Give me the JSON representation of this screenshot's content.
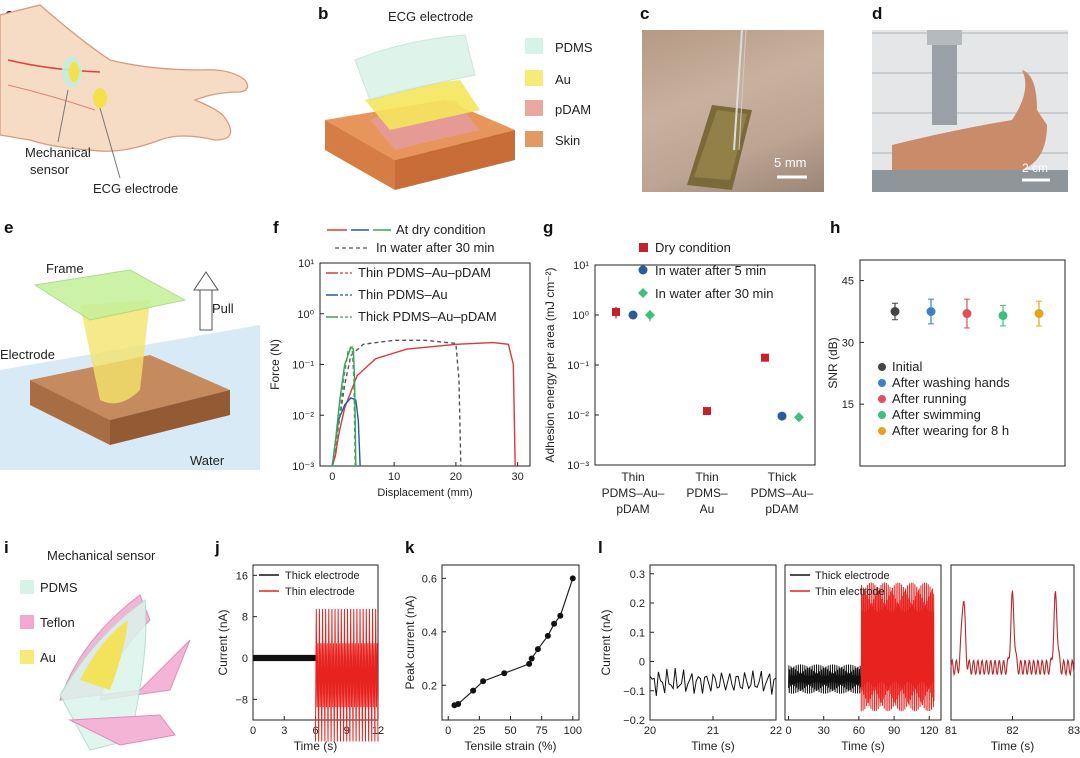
{
  "panels": {
    "a": {
      "label": "a",
      "mech": "Mechanical\nsensor",
      "ecg": "ECG electrode"
    },
    "b": {
      "label": "b",
      "title": "ECG electrode",
      "layers": [
        {
          "name": "PDMS",
          "color": "#d7f3e8"
        },
        {
          "name": "Au",
          "color": "#f6ea7a"
        },
        {
          "name": "pDAM",
          "color": "#e9a7a0"
        },
        {
          "name": "Skin",
          "color": "#e09a62"
        }
      ]
    },
    "c": {
      "label": "c",
      "scale": "5 mm"
    },
    "d": {
      "label": "d",
      "scale": "2 cm"
    },
    "e": {
      "label": "e",
      "frame": "Frame",
      "pull": "Pull",
      "electrode": "Electrode",
      "water": "Water"
    },
    "f": {
      "label": "f",
      "legend_top": [
        "At dry condition",
        "In water after 30 min"
      ]
    },
    "g": {
      "label": "g"
    },
    "h": {
      "label": "h"
    },
    "i": {
      "label": "i",
      "title": "Mechanical sensor",
      "layers": [
        {
          "name": "PDMS",
          "color": "#d7f3e8"
        },
        {
          "name": "Teflon",
          "color": "#f3a9cf"
        },
        {
          "name": "Au",
          "color": "#f6ea7a"
        }
      ]
    },
    "j": {
      "label": "j"
    },
    "k": {
      "label": "k"
    },
    "l": {
      "label": "l"
    }
  },
  "chart_data": [
    {
      "id": "f",
      "type": "line",
      "xlabel": "Displacement (mm)",
      "ylabel": "Force (N)",
      "yscale": "log",
      "xlim": [
        -2,
        32
      ],
      "ylim": [
        0.001,
        10
      ],
      "xticks": [
        "0",
        "10",
        "20",
        "30"
      ],
      "yticks": [
        "10⁻³",
        "10⁻²",
        "10⁻¹",
        "10⁰",
        "10¹"
      ],
      "series": [
        {
          "name": "Thin PDMS–Au–pDAM",
          "color": "#d63b3b",
          "dash": false,
          "x": [
            0,
            0.5,
            1,
            2,
            4,
            7,
            12,
            20,
            26,
            28.5,
            29.3,
            29.6
          ],
          "y": [
            0.001,
            0.0016,
            0.004,
            0.014,
            0.06,
            0.13,
            0.2,
            0.25,
            0.27,
            0.25,
            0.1,
            0.001
          ]
        },
        {
          "name": "Thin PDMS–Au–pDAM water",
          "color": "#555",
          "dash": true,
          "x": [
            0,
            1,
            2,
            3,
            5,
            10,
            15,
            20,
            20.5,
            20.8
          ],
          "y": [
            0.001,
            0.006,
            0.04,
            0.15,
            0.25,
            0.3,
            0.3,
            0.26,
            0.05,
            0.001
          ]
        },
        {
          "name": "Thin PDMS–Au",
          "color": "#1f5aa8",
          "dash": false,
          "x": [
            0,
            0.5,
            1,
            2,
            3,
            3.8,
            4.2,
            4.5
          ],
          "y": [
            0.001,
            0.003,
            0.008,
            0.016,
            0.022,
            0.02,
            0.008,
            0.001
          ]
        },
        {
          "name": "Thick PDMS–Au–pDAM",
          "color": "#3fa05a",
          "dash": false,
          "x": [
            0,
            0.6,
            1.2,
            2,
            3,
            3.4,
            3.6,
            3.8
          ],
          "y": [
            0.001,
            0.004,
            0.02,
            0.1,
            0.22,
            0.2,
            0.05,
            0.001
          ]
        },
        {
          "name": "Thick PDMS–Au–pDAM water",
          "color": "#3fa05a",
          "dash": true,
          "x": [
            0,
            1,
            1.8,
            2.6,
            3.2,
            3.5,
            3.7
          ],
          "y": [
            0.001,
            0.006,
            0.05,
            0.2,
            0.22,
            0.05,
            0.001
          ]
        }
      ],
      "legend": [
        "Thin PDMS–Au–pDAM",
        "Thin PDMS–Au",
        "Thick PDMS–Au–pDAM"
      ]
    },
    {
      "id": "g",
      "type": "scatter",
      "ylabel": "Adhesion energy per area (mJ cm⁻²)",
      "yscale": "log",
      "ylim": [
        0.001,
        10
      ],
      "yticks": [
        "10⁻³",
        "10⁻²",
        "10⁻¹",
        "10⁰",
        "10¹"
      ],
      "categories": [
        "Thin\nPDMS–Au–\npDAM",
        "Thin\nPDMS–\nAu",
        "Thick\nPDMS–Au–\npDAM"
      ],
      "series": [
        {
          "name": "Dry condition",
          "color": "#c8202a",
          "marker": "square",
          "values": [
            1.15,
            0.012,
            0.14
          ],
          "err": [
            0.3,
            0.001,
            0.02
          ]
        },
        {
          "name": "In water after 5 min",
          "color": "#2a5c9a",
          "marker": "circle",
          "values": [
            1.0,
            null,
            0.0095
          ],
          "err": [
            0,
            0,
            0.0015
          ]
        },
        {
          "name": "In water after 30 min",
          "color": "#3dbf7d",
          "marker": "diamond",
          "values": [
            1.0,
            null,
            0.009
          ],
          "err": [
            0.25,
            0,
            0.001
          ]
        }
      ]
    },
    {
      "id": "h",
      "type": "scatter",
      "ylabel": "SNR (dB)",
      "ylim": [
        0,
        50
      ],
      "yticks": [
        "15",
        "30",
        "45"
      ],
      "series": [
        {
          "name": "Initial",
          "color": "#444",
          "value": 37.5,
          "err": 2
        },
        {
          "name": "After washing hands",
          "color": "#3b82c4",
          "value": 37.5,
          "err": 3
        },
        {
          "name": "After running",
          "color": "#e0505a",
          "value": 37,
          "err": 3.5
        },
        {
          "name": "After swimming",
          "color": "#3dbf7d",
          "value": 36.5,
          "err": 2.5
        },
        {
          "name": "After wearing for 8 h",
          "color": "#e3a520",
          "value": 37,
          "err": 3
        }
      ]
    },
    {
      "id": "j",
      "type": "line",
      "xlabel": "Time (s)",
      "ylabel": "Current (nA)",
      "xlim": [
        0,
        12
      ],
      "ylim": [
        -12,
        18
      ],
      "xticks": [
        "0",
        "3",
        "6",
        "9",
        "12"
      ],
      "yticks": [
        "16",
        "8",
        "0",
        "−8"
      ],
      "series": [
        {
          "name": "Thick electrode",
          "color": "#111",
          "x_range": [
            0,
            6
          ],
          "amplitude": 0.6
        },
        {
          "name": "Thin electrode",
          "color": "#e8221e",
          "x_range": [
            6,
            12
          ],
          "amplitude": 9.5
        }
      ]
    },
    {
      "id": "k",
      "type": "line",
      "xlabel": "Tensile strain (%)",
      "ylabel": "Peak current (nA)",
      "xlim": [
        -5,
        105
      ],
      "ylim": [
        0.07,
        0.65
      ],
      "xticks": [
        "0",
        "25",
        "50",
        "75",
        "100"
      ],
      "yticks": [
        "0.2",
        "0.4",
        "0.6"
      ],
      "x": [
        5,
        8,
        20,
        28,
        45,
        65,
        67,
        72,
        80,
        85,
        90,
        100
      ],
      "y": [
        0.125,
        0.13,
        0.18,
        0.215,
        0.245,
        0.28,
        0.3,
        0.335,
        0.385,
        0.43,
        0.46,
        0.6
      ]
    },
    {
      "id": "l",
      "type": "line",
      "ylabel": "Current (nA)",
      "ylim": [
        -0.2,
        0.33
      ],
      "yticks": [
        "0.3",
        "0.2",
        "0.1",
        "0",
        "−0.1",
        "−0.2"
      ],
      "subplots": [
        {
          "xlabel": "Time (s)",
          "xlim": [
            20,
            22
          ],
          "xticks": [
            "20",
            "21",
            "22"
          ]
        },
        {
          "xlabel": "Time (s)",
          "xlim": [
            -3,
            130
          ],
          "xticks": [
            "0",
            "30",
            "60",
            "90",
            "120"
          ],
          "legend": [
            "Thick electrode",
            "Thin electrode"
          ],
          "colors": [
            "#111",
            "#e8221e"
          ]
        },
        {
          "xlabel": "Time (s)",
          "xlim": [
            81,
            83
          ],
          "xticks": [
            "81",
            "82",
            "83"
          ]
        }
      ]
    }
  ]
}
